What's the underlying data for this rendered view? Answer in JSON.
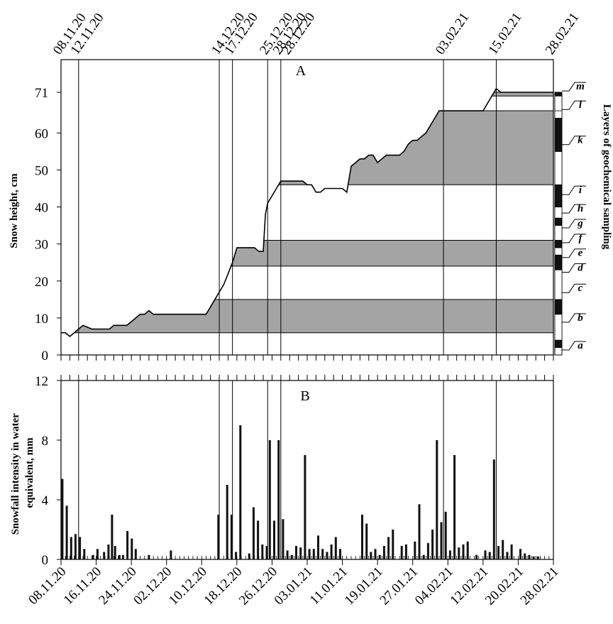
{
  "chart_data": [
    {
      "panel": "A",
      "type": "area",
      "ylabel": "Snow height, cm",
      "right_label": "Layers of geochemical sampling",
      "ylim": [
        0,
        80
      ],
      "yticks": [
        0,
        10,
        20,
        30,
        40,
        50,
        60,
        71
      ],
      "top_date_labels": [
        "08.11.20",
        "12.11.20",
        "14.12.20",
        "17.12.20",
        "25.12.20",
        "28.12.20",
        "28.12.20",
        "03.02.21",
        "15.02.21",
        "28.02.21"
      ],
      "event_days": [
        4,
        36,
        39,
        47,
        50,
        87,
        99
      ],
      "x_unit": "days since 08.11.20",
      "snow_height": [
        [
          0,
          6
        ],
        [
          1,
          6
        ],
        [
          2,
          5
        ],
        [
          3,
          6
        ],
        [
          4,
          7
        ],
        [
          5,
          8
        ],
        [
          6,
          7.5
        ],
        [
          7,
          7
        ],
        [
          8,
          7
        ],
        [
          9,
          7
        ],
        [
          10,
          7
        ],
        [
          11,
          7
        ],
        [
          12,
          8
        ],
        [
          13,
          8
        ],
        [
          14,
          8
        ],
        [
          15,
          8
        ],
        [
          16,
          9
        ],
        [
          17,
          10
        ],
        [
          18,
          11
        ],
        [
          19,
          11
        ],
        [
          20,
          12
        ],
        [
          21,
          11
        ],
        [
          22,
          11
        ],
        [
          23,
          11
        ],
        [
          24,
          11
        ],
        [
          25,
          11
        ],
        [
          26,
          11
        ],
        [
          27,
          11
        ],
        [
          28,
          11
        ],
        [
          29,
          11
        ],
        [
          30,
          11
        ],
        [
          31,
          11
        ],
        [
          32,
          11
        ],
        [
          33,
          11
        ],
        [
          34,
          13
        ],
        [
          35,
          15
        ],
        [
          36,
          17
        ],
        [
          37,
          19
        ],
        [
          38,
          22
        ],
        [
          39,
          25
        ],
        [
          40,
          29
        ],
        [
          41,
          29
        ],
        [
          42,
          29
        ],
        [
          43,
          29
        ],
        [
          44,
          29
        ],
        [
          45,
          28
        ],
        [
          46,
          28
        ],
        [
          46.5,
          38
        ],
        [
          47,
          41
        ],
        [
          48,
          43
        ],
        [
          49,
          45
        ],
        [
          50,
          47
        ],
        [
          51,
          47
        ],
        [
          52,
          47
        ],
        [
          53,
          47
        ],
        [
          54,
          47
        ],
        [
          55,
          47
        ],
        [
          56,
          46
        ],
        [
          57,
          46
        ],
        [
          58,
          44
        ],
        [
          59,
          44
        ],
        [
          60,
          45
        ],
        [
          61,
          45
        ],
        [
          62,
          45
        ],
        [
          63,
          45
        ],
        [
          64,
          45
        ],
        [
          65,
          44
        ],
        [
          66,
          51
        ],
        [
          67,
          52
        ],
        [
          68,
          53
        ],
        [
          69,
          53
        ],
        [
          70,
          54
        ],
        [
          71,
          54
        ],
        [
          72,
          52
        ],
        [
          73,
          53
        ],
        [
          74,
          54
        ],
        [
          75,
          54
        ],
        [
          76,
          54
        ],
        [
          77,
          54
        ],
        [
          78,
          55
        ],
        [
          79,
          57
        ],
        [
          80,
          58
        ],
        [
          81,
          58
        ],
        [
          82,
          59
        ],
        [
          83,
          60
        ],
        [
          84,
          62
        ],
        [
          85,
          64
        ],
        [
          86,
          66
        ],
        [
          87,
          66
        ],
        [
          88,
          66
        ],
        [
          89,
          66
        ],
        [
          90,
          66
        ],
        [
          91,
          66
        ],
        [
          92,
          66
        ],
        [
          93,
          66
        ],
        [
          94,
          66
        ],
        [
          95,
          66
        ],
        [
          96,
          66
        ],
        [
          97,
          68
        ],
        [
          98,
          70
        ],
        [
          99,
          72
        ],
        [
          100,
          71
        ],
        [
          101,
          71
        ],
        [
          102,
          71
        ],
        [
          103,
          71
        ],
        [
          104,
          71
        ],
        [
          105,
          71
        ],
        [
          106,
          71
        ],
        [
          107,
          71
        ],
        [
          108,
          71
        ],
        [
          109,
          71
        ],
        [
          110,
          71
        ],
        [
          111,
          71
        ],
        [
          112,
          71
        ]
      ],
      "shaded_layers": [
        {
          "from": 6,
          "to": 15,
          "label": "b"
        },
        {
          "from": 24,
          "to": 31,
          "label": "e"
        },
        {
          "from": 46,
          "to": 66,
          "label": "k"
        },
        {
          "from": 70,
          "to": 71,
          "label": "m"
        }
      ],
      "sampling_bars": [
        {
          "from": 2,
          "to": 4,
          "fill": "black"
        },
        {
          "from": 4,
          "to": 11,
          "fill": "white"
        },
        {
          "from": 11,
          "to": 15,
          "fill": "black"
        },
        {
          "from": 15,
          "to": 23,
          "fill": "white"
        },
        {
          "from": 23,
          "to": 27,
          "fill": "black"
        },
        {
          "from": 27,
          "to": 29,
          "fill": "white"
        },
        {
          "from": 29,
          "to": 31,
          "fill": "black"
        },
        {
          "from": 31,
          "to": 35,
          "fill": "white"
        },
        {
          "from": 35,
          "to": 37,
          "fill": "black"
        },
        {
          "from": 37,
          "to": 40,
          "fill": "white"
        },
        {
          "from": 40,
          "to": 46,
          "fill": "black"
        },
        {
          "from": 46,
          "to": 55,
          "fill": "white"
        },
        {
          "from": 55,
          "to": 64,
          "fill": "black"
        },
        {
          "from": 64,
          "to": 66,
          "fill": "white"
        },
        {
          "from": 66,
          "to": 70,
          "fill": "white"
        },
        {
          "from": 70,
          "to": 71,
          "fill": "black"
        }
      ],
      "layer_labels": [
        {
          "label": "a",
          "y": 2.5
        },
        {
          "label": "b",
          "y": 10
        },
        {
          "label": "c",
          "y": 18
        },
        {
          "label": "d",
          "y": 23.5
        },
        {
          "label": "e",
          "y": 27.5
        },
        {
          "label": "f",
          "y": 31.5
        },
        {
          "label": "g",
          "y": 35.5
        },
        {
          "label": "h",
          "y": 39.5
        },
        {
          "label": "i",
          "y": 44.5
        },
        {
          "label": "k",
          "y": 58
        },
        {
          "label": "l",
          "y": 67.5
        },
        {
          "label": "m",
          "y": 72.5
        }
      ]
    },
    {
      "panel": "B",
      "type": "bar",
      "ylabel": "Snowfall intensity in water equivalent, mm",
      "ylim": [
        0,
        12
      ],
      "yticks": [
        0,
        4,
        8,
        12
      ],
      "xtick_labels": [
        "08.11.20",
        "16.11.20",
        "24.11.20",
        "02.12.20",
        "10.12.20",
        "18.12.20",
        "26.12.20",
        "03.01.21",
        "11.01.21",
        "19.01.21",
        "27.01.21",
        "04.02.21",
        "12.02.21",
        "20.02.21",
        "28.02.21"
      ],
      "xtick_days": [
        0,
        8,
        16,
        24,
        32,
        40,
        48,
        56,
        64,
        72,
        80,
        88,
        96,
        104,
        112
      ],
      "bars": [
        [
          0.3,
          5.4
        ],
        [
          1.3,
          3.6
        ],
        [
          2.3,
          1.5
        ],
        [
          3.3,
          1.7
        ],
        [
          4.3,
          1.5
        ],
        [
          5.3,
          0.7
        ],
        [
          7.3,
          0.3
        ],
        [
          8.3,
          0.7
        ],
        [
          9.8,
          0.5
        ],
        [
          10.8,
          1.0
        ],
        [
          11.6,
          3.0
        ],
        [
          12.3,
          0.9
        ],
        [
          13.3,
          0.3
        ],
        [
          14.1,
          0.3
        ],
        [
          15.1,
          1.9
        ],
        [
          16.1,
          1.4
        ],
        [
          17.0,
          0.7
        ],
        [
          20.0,
          0.3
        ],
        [
          25.0,
          0.6
        ],
        [
          35.8,
          3.0
        ],
        [
          37.8,
          5.0
        ],
        [
          38.8,
          3.0
        ],
        [
          39.8,
          0.5
        ],
        [
          40.8,
          9.0
        ],
        [
          42.8,
          0.4
        ],
        [
          43.8,
          3.5
        ],
        [
          44.8,
          2.6
        ],
        [
          45.8,
          1.0
        ],
        [
          46.8,
          0.9
        ],
        [
          47.5,
          8.0
        ],
        [
          48.5,
          2.6
        ],
        [
          49.5,
          8.0
        ],
        [
          50.5,
          2.7
        ],
        [
          51.5,
          0.6
        ],
        [
          52.5,
          0.3
        ],
        [
          53.5,
          0.9
        ],
        [
          54.5,
          0.8
        ],
        [
          55.5,
          7.0
        ],
        [
          56.5,
          0.7
        ],
        [
          57.5,
          0.7
        ],
        [
          58.5,
          1.6
        ],
        [
          59.5,
          0.7
        ],
        [
          60.5,
          0.5
        ],
        [
          61.5,
          1.0
        ],
        [
          62.5,
          1.5
        ],
        [
          63.5,
          0.7
        ],
        [
          68.5,
          3.0
        ],
        [
          69.5,
          2.4
        ],
        [
          70.5,
          0.5
        ],
        [
          71.5,
          0.7
        ],
        [
          72.5,
          0.3
        ],
        [
          73.5,
          0.9
        ],
        [
          74.5,
          1.5
        ],
        [
          75.5,
          2.0
        ],
        [
          77.5,
          0.9
        ],
        [
          78.5,
          1.0
        ],
        [
          80.5,
          1.2
        ],
        [
          81.5,
          3.7
        ],
        [
          82.5,
          0.3
        ],
        [
          83.5,
          1.1
        ],
        [
          84.5,
          2.0
        ],
        [
          85.5,
          8.0
        ],
        [
          86.5,
          2.5
        ],
        [
          87.5,
          3.2
        ],
        [
          88.5,
          0.6
        ],
        [
          89.5,
          7.0
        ],
        [
          90.5,
          0.8
        ],
        [
          91.5,
          1.0
        ],
        [
          92.5,
          1.2
        ],
        [
          94.5,
          0.3
        ],
        [
          96.5,
          0.6
        ],
        [
          97.5,
          0.5
        ],
        [
          98.5,
          6.7
        ],
        [
          99.5,
          0.9
        ],
        [
          100.5,
          1.3
        ],
        [
          101.5,
          0.5
        ],
        [
          102.5,
          1.0
        ],
        [
          104.5,
          0.7
        ],
        [
          105.5,
          0.4
        ],
        [
          106.5,
          0.3
        ],
        [
          107.5,
          0.2
        ],
        [
          108.5,
          0.2
        ]
      ]
    }
  ]
}
